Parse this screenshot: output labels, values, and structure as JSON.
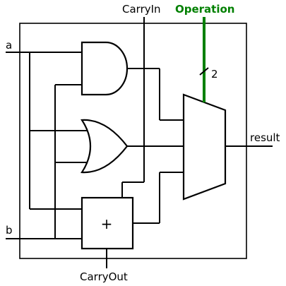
{
  "diagram": {
    "labels": {
      "input_a": "a",
      "input_b": "b",
      "carry_in": "CarryIn",
      "operation": "Operation",
      "operation_width": "2",
      "result": "result",
      "carry_out": "CarryOut",
      "adder_symbol": "+"
    },
    "colors": {
      "operation_bus": "#008000",
      "wires": "#000000",
      "background": "#ffffff"
    }
  }
}
